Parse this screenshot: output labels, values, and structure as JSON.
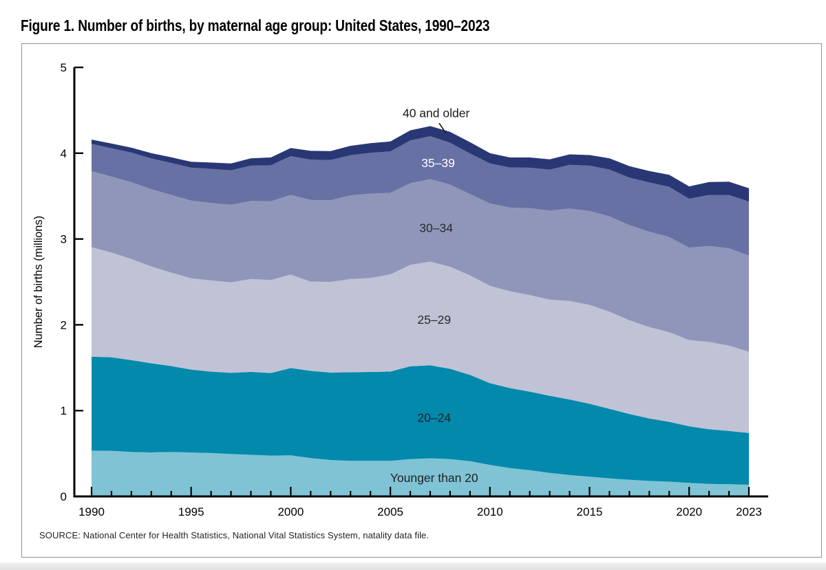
{
  "page": {
    "figure_title": "Figure 1. Number of births, by maternal age group: United States, 1990–2023",
    "source_note": "SOURCE: National Center for Health Statistics, National Vital Statistics System, natality data file."
  },
  "chart_data": {
    "type": "area",
    "stacked": true,
    "title": "Figure 1. Number of births, by maternal age group: United States, 1990–2023",
    "xlabel": "",
    "ylabel": "Number of births (millions)",
    "ylim": [
      0,
      5
    ],
    "grid": false,
    "legend_position": "labels inside bands",
    "yaxis": {
      "ticks": [
        0,
        1,
        2,
        3,
        4,
        5
      ]
    },
    "xaxis": {
      "labeled_years": [
        1990,
        1995,
        2000,
        2005,
        2010,
        2015,
        2020,
        2023
      ],
      "minor_tick_every_years": 1
    },
    "x": [
      1990,
      1991,
      1992,
      1993,
      1994,
      1995,
      1996,
      1997,
      1998,
      1999,
      2000,
      2001,
      2002,
      2003,
      2004,
      2005,
      2006,
      2007,
      2008,
      2009,
      2010,
      2011,
      2012,
      2013,
      2014,
      2015,
      2016,
      2017,
      2018,
      2019,
      2020,
      2021,
      2022,
      2023
    ],
    "series": [
      {
        "id": "younger-than-20",
        "name": "Younger than 20",
        "color": "#80c3d5",
        "values": [
          0.534,
          0.532,
          0.518,
          0.513,
          0.518,
          0.512,
          0.506,
          0.494,
          0.485,
          0.476,
          0.479,
          0.446,
          0.425,
          0.415,
          0.415,
          0.415,
          0.435,
          0.445,
          0.435,
          0.41,
          0.368,
          0.33,
          0.305,
          0.275,
          0.249,
          0.23,
          0.21,
          0.194,
          0.18,
          0.172,
          0.158,
          0.147,
          0.142,
          0.136
        ]
      },
      {
        "id": "20-24",
        "name": "20–24",
        "color": "#0289ac",
        "values": [
          1.094,
          1.09,
          1.07,
          1.038,
          1.001,
          0.966,
          0.948,
          0.947,
          0.966,
          0.962,
          1.018,
          1.017,
          1.018,
          1.032,
          1.035,
          1.04,
          1.082,
          1.083,
          1.052,
          1.007,
          0.952,
          0.933,
          0.916,
          0.898,
          0.881,
          0.85,
          0.811,
          0.767,
          0.729,
          0.697,
          0.659,
          0.636,
          0.621,
          0.603
        ]
      },
      {
        "id": "25-29",
        "name": "25–29",
        "color": "#c0c3d6",
        "values": [
          1.277,
          1.22,
          1.179,
          1.129,
          1.089,
          1.064,
          1.063,
          1.054,
          1.083,
          1.084,
          1.088,
          1.04,
          1.057,
          1.086,
          1.095,
          1.132,
          1.182,
          1.208,
          1.189,
          1.159,
          1.134,
          1.128,
          1.125,
          1.121,
          1.148,
          1.152,
          1.133,
          1.091,
          1.064,
          1.045,
          1.005,
          1.017,
          0.995,
          0.947
        ]
      },
      {
        "id": "30-34",
        "name": "30–34",
        "color": "#9096b9",
        "values": [
          0.886,
          0.885,
          0.895,
          0.901,
          0.906,
          0.905,
          0.904,
          0.903,
          0.91,
          0.919,
          0.929,
          0.951,
          0.952,
          0.976,
          0.983,
          0.951,
          0.951,
          0.962,
          0.957,
          0.947,
          0.962,
          0.975,
          1.013,
          1.037,
          1.077,
          1.094,
          1.109,
          1.11,
          1.112,
          1.109,
          1.077,
          1.119,
          1.134,
          1.121
        ]
      },
      {
        "id": "35-39",
        "name": "35–39",
        "color": "#6771a3",
        "values": [
          0.318,
          0.331,
          0.345,
          0.357,
          0.372,
          0.384,
          0.396,
          0.402,
          0.411,
          0.418,
          0.452,
          0.471,
          0.468,
          0.468,
          0.476,
          0.483,
          0.499,
          0.5,
          0.489,
          0.474,
          0.465,
          0.467,
          0.472,
          0.477,
          0.509,
          0.528,
          0.546,
          0.553,
          0.574,
          0.584,
          0.57,
          0.595,
          0.622,
          0.629
        ]
      },
      {
        "id": "40-older",
        "name": "40 and older",
        "color": "#293875",
        "values": [
          0.05,
          0.054,
          0.058,
          0.062,
          0.066,
          0.07,
          0.074,
          0.08,
          0.085,
          0.091,
          0.095,
          0.102,
          0.104,
          0.109,
          0.113,
          0.116,
          0.117,
          0.118,
          0.127,
          0.131,
          0.119,
          0.117,
          0.119,
          0.12,
          0.122,
          0.124,
          0.132,
          0.134,
          0.133,
          0.141,
          0.144,
          0.15,
          0.154,
          0.155
        ]
      }
    ],
    "annotations": [
      {
        "id": "label-40-older",
        "text": "40 and older",
        "year": 2007.3,
        "value": 4.42,
        "color": "#1a1a1a",
        "leader": {
          "x1": 2007.45,
          "y1": 4.35,
          "x2": 2007.8,
          "y2": 4.23
        }
      },
      {
        "id": "label-35-39",
        "text": "35–39",
        "year": 2007.4,
        "value": 3.84,
        "color": "#ffffff"
      },
      {
        "id": "label-30-34",
        "text": "30–34",
        "year": 2007.3,
        "value": 3.08,
        "color": "#2b2b2b"
      },
      {
        "id": "label-25-29",
        "text": "25–29",
        "year": 2007.2,
        "value": 2.01,
        "color": "#2b2b2b"
      },
      {
        "id": "label-20-24",
        "text": "20–24",
        "year": 2007.2,
        "value": 0.87,
        "color": "#1f1f1f"
      },
      {
        "id": "label-younger-than-20",
        "text": "Younger than 20",
        "year": 2007.2,
        "value": 0.17,
        "color": "#1f1f1f"
      }
    ]
  }
}
